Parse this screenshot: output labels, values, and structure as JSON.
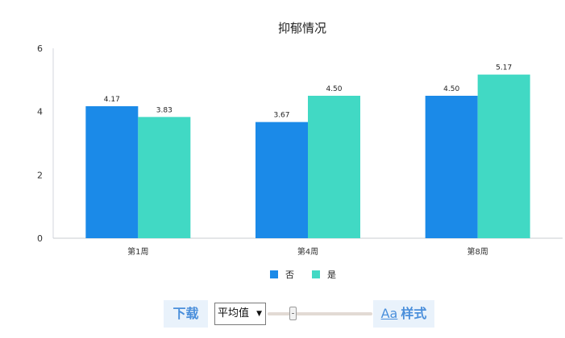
{
  "chart_data": {
    "type": "bar",
    "title": "抑郁情况",
    "xlabel": "",
    "ylabel": "",
    "categories": [
      "第1周",
      "第4周",
      "第8周"
    ],
    "series": [
      {
        "name": "否",
        "values": [
          4.17,
          3.67,
          4.5
        ],
        "labels": [
          "4.17",
          "3.67",
          "4.50"
        ],
        "color": "#1b8ae8"
      },
      {
        "name": "是",
        "values": [
          3.83,
          4.5,
          5.17
        ],
        "labels": [
          "3.83",
          "4.50",
          "5.17"
        ],
        "color": "#41d9c4"
      }
    ],
    "ylim": [
      0,
      6
    ],
    "yticks": [
      "0",
      "2",
      "4",
      "6"
    ],
    "grid": false,
    "legend_position": "bottom-center"
  },
  "toolbar": {
    "download_label": "下载",
    "aggregation_value": "平均值",
    "style_icon_label": "Aa",
    "style_label": "样式",
    "accent_color": "#4a8fdb"
  }
}
